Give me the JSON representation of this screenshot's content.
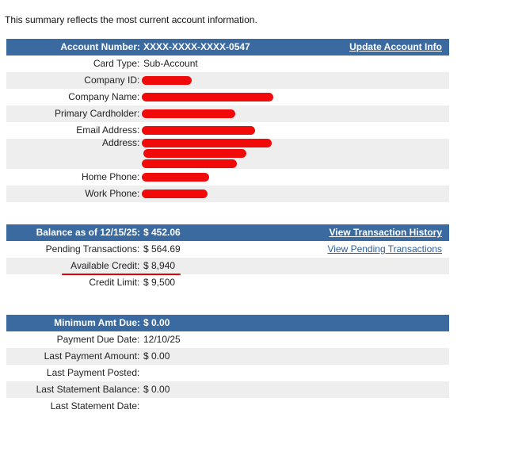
{
  "intro": "This summary reflects the most current account information.",
  "account": {
    "header_label": "Account Number",
    "header_value": "XXXX-XXXX-XXXX-0547",
    "header_link": "Update Account Info",
    "rows": [
      {
        "label": "Card Type",
        "value": "Sub-Account"
      },
      {
        "label": "Company ID",
        "value": ""
      },
      {
        "label": "Company Name",
        "value": ""
      },
      {
        "label": "Primary Cardholder",
        "value": ""
      },
      {
        "label": "Email Address",
        "value": ""
      },
      {
        "label": "Address",
        "value": ""
      },
      {
        "label": "Home Phone",
        "value": ""
      },
      {
        "label": "Work Phone",
        "value": ""
      }
    ]
  },
  "balance": {
    "header_label": "Balance as of 12/15/25",
    "header_value": "$ 452.06",
    "header_link": "View Transaction History",
    "rows": [
      {
        "label": "Pending Transactions",
        "value": "$ 564.69",
        "link": "View Pending Transactions"
      },
      {
        "label": "Available Credit",
        "value": "$ 8,940"
      },
      {
        "label": "Credit Limit",
        "value": "$ 9,500"
      }
    ]
  },
  "payment": {
    "header_label": "Minimum Amt Due",
    "header_value": "$ 0.00",
    "rows": [
      {
        "label": "Payment Due Date",
        "value": "12/10/25"
      },
      {
        "label": "Last Payment Amount",
        "value": "$ 0.00"
      },
      {
        "label": "Last Payment Posted",
        "value": ""
      },
      {
        "label": "Last Statement Balance",
        "value": "$ 0.00"
      },
      {
        "label": "Last Statement Date",
        "value": ""
      }
    ]
  },
  "colors": {
    "header_bg": "#3b6aa0",
    "row_alt": "#eeeeee",
    "redaction": "#f00a0a",
    "link": "#2f5d99"
  }
}
